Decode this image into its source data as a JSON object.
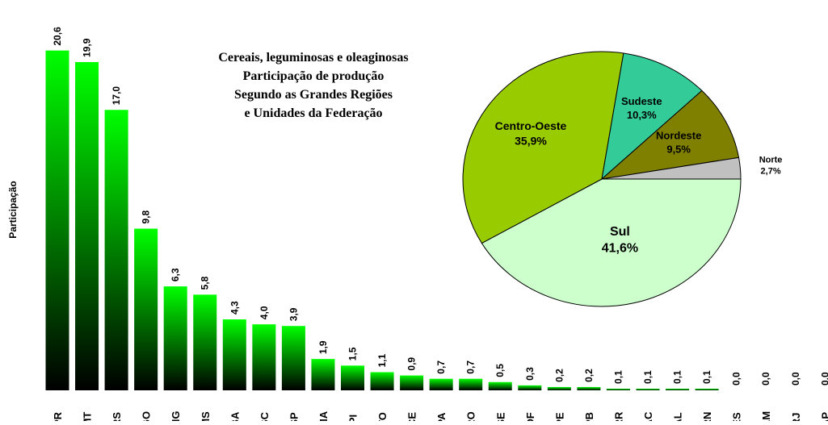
{
  "chart_data": [
    {
      "type": "bar",
      "ylabel": "Participação",
      "categories": [
        "PR",
        "MT",
        "RS",
        "GO",
        "MG",
        "MS",
        "BA",
        "SC",
        "SP",
        "MA",
        "PI",
        "TO",
        "CE",
        "PA",
        "RO",
        "SE",
        "DF",
        "PE",
        "PB",
        "RR",
        "AC",
        "AL",
        "RN",
        "ES",
        "AM",
        "RJ",
        "AP"
      ],
      "values": [
        20.6,
        19.9,
        17.0,
        9.8,
        6.3,
        5.8,
        4.3,
        4.0,
        3.9,
        1.9,
        1.5,
        1.1,
        0.9,
        0.7,
        0.7,
        0.5,
        0.3,
        0.2,
        0.2,
        0.1,
        0.1,
        0.1,
        0.1,
        0.0,
        0.0,
        0.0,
        0.0
      ],
      "value_labels": [
        "20,6",
        "19,9",
        "17,0",
        "9,8",
        "6,3",
        "5,8",
        "4,3",
        "4,0",
        "3,9",
        "1,9",
        "1,5",
        "1,1",
        "0,9",
        "0,7",
        "0,7",
        "0,5",
        "0,3",
        "0,2",
        "0,2",
        "0,1",
        "0,1",
        "0,1",
        "0,1",
        "0,0",
        "0,0",
        "0,0",
        "0,0"
      ],
      "color": "#00ff00",
      "ylim": [
        0,
        22
      ]
    },
    {
      "type": "pie",
      "title": [
        "Cereais, leguminosas e oleaginosas",
        "Participação de produção",
        "Segundo as Grandes Regiões",
        "e Unidades da Federação"
      ],
      "categories": [
        "Sul",
        "Centro-Oeste",
        "Sudeste",
        "Nordeste",
        "Norte"
      ],
      "values": [
        41.6,
        35.9,
        10.3,
        9.5,
        2.7
      ],
      "value_labels": [
        "41,6%",
        "35,9%",
        "10,3%",
        "9,5%",
        "2,7%"
      ],
      "colors": [
        "#ccffcc",
        "#99cc00",
        "#33cc99",
        "#808000",
        "#c0c0c0"
      ]
    }
  ]
}
